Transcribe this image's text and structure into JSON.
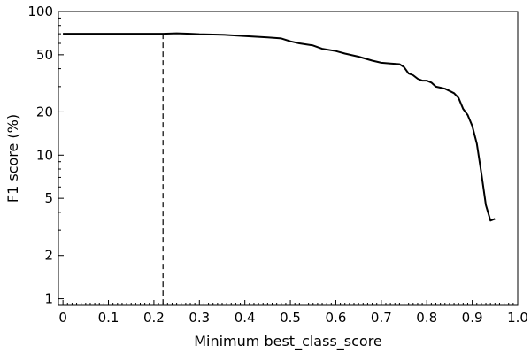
{
  "chart_data": {
    "type": "line",
    "title": "",
    "xlabel": "Minimum best_class_score",
    "ylabel": "F1 score (%)",
    "xlim": [
      -0.01,
      1.0
    ],
    "ylim": [
      0.9,
      100
    ],
    "yscale": "log",
    "grid": false,
    "legend": "none",
    "x_ticks": [
      0,
      0.1,
      0.2,
      0.3,
      0.4,
      0.5,
      0.6,
      0.7,
      0.8,
      0.9,
      1.0
    ],
    "x_tick_labels": [
      "0",
      "0.1",
      "0.2",
      "0.3",
      "0.4",
      "0.5",
      "0.6",
      "0.7",
      "0.8",
      "0.9",
      "1.0"
    ],
    "y_ticks": [
      1,
      2,
      5,
      10,
      20,
      50,
      100
    ],
    "y_tick_labels": [
      "1",
      "2",
      "5",
      "10",
      "20",
      "50",
      "100"
    ],
    "series": [
      {
        "color": "#000000",
        "style": "solid",
        "x": [
          0,
          0.05,
          0.1,
          0.15,
          0.2,
          0.22,
          0.25,
          0.28,
          0.3,
          0.35,
          0.4,
          0.45,
          0.48,
          0.5,
          0.52,
          0.55,
          0.57,
          0.6,
          0.62,
          0.65,
          0.68,
          0.7,
          0.72,
          0.74,
          0.75,
          0.76,
          0.77,
          0.78,
          0.79,
          0.8,
          0.81,
          0.82,
          0.83,
          0.84,
          0.85,
          0.86,
          0.87,
          0.88,
          0.89,
          0.9,
          0.91,
          0.92,
          0.93,
          0.94,
          0.95
        ],
        "values": [
          70,
          70,
          70,
          70,
          70,
          70,
          70.5,
          70,
          69.5,
          69,
          67.5,
          66,
          65,
          62,
          60,
          58,
          55,
          53,
          51,
          48.5,
          45.5,
          44,
          43.5,
          43,
          41,
          37,
          36,
          34,
          33,
          33,
          32,
          30,
          29.5,
          29,
          28,
          27,
          25,
          21,
          19,
          16,
          12,
          7.5,
          4.5,
          3.5,
          3.6
        ]
      }
    ],
    "reference_line": {
      "x": 0.22,
      "style": "dashed",
      "color": "#000000"
    }
  }
}
